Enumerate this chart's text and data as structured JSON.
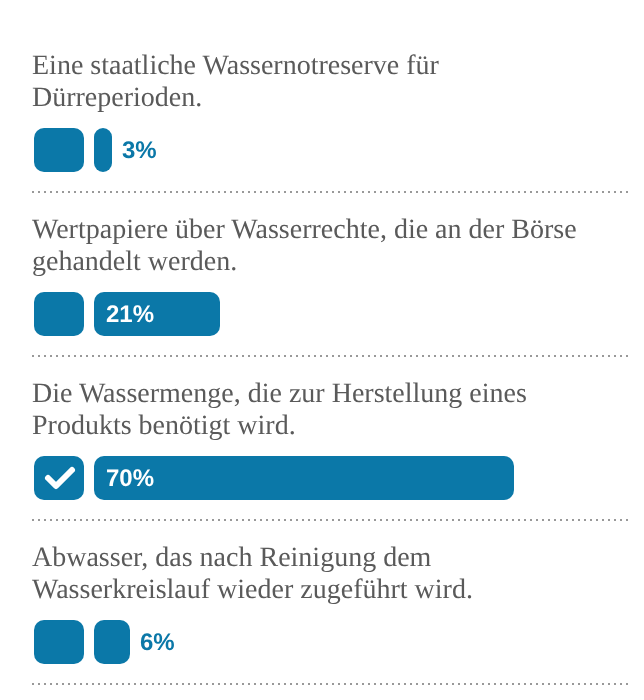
{
  "chart_data": {
    "type": "bar",
    "orientation": "horizontal",
    "categories": [
      "Eine staatliche Wassernotreserve für Dürreperioden.",
      "Wertpapiere über Wasserrechte, die an der Börse gehandelt werden.",
      "Die Wassermenge, die zur Herstellung eines Produkts benötigt wird.",
      "Abwasser, das nach Reinigung dem Wasserkreislauf wieder zugeführt wird."
    ],
    "values": [
      3,
      21,
      70,
      6
    ],
    "value_labels": [
      "3%",
      "21%",
      "70%",
      "6%"
    ],
    "color": "#0b78a8"
  }
}
